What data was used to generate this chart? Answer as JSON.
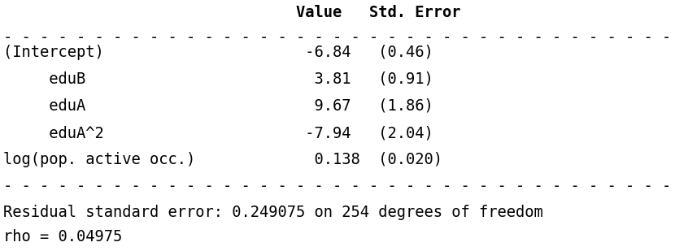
{
  "header": "                                Value   Std. Error",
  "sep": "- - - - - - - - - - - - - - - - - - - - - - - - - - - - - - - - - - - - - - - - - - - -",
  "rows": [
    "(Intercept)                      -6.84   (0.46)",
    "     eduB                         3.81   (0.91)",
    "     eduA                         9.67   (1.86)",
    "     eduA^2                      -7.94   (2.04)",
    "log(pop. active occ.)             0.138  (0.020)"
  ],
  "footer_line1": "Residual standard error: 0.249075 on 254 degrees of freedom",
  "footer_line2": "rho = 0.04975",
  "bg_color": "#ffffff",
  "text_color": "#000000",
  "font_size": 13.5
}
